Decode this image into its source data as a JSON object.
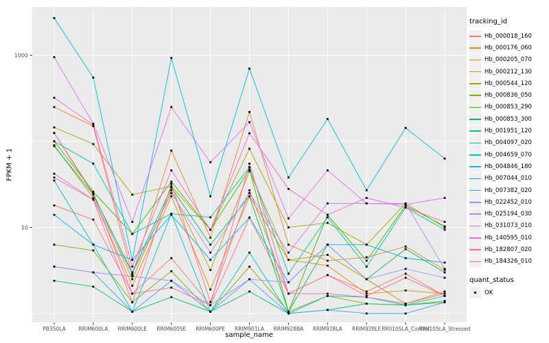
{
  "figure": {
    "panel_bg": "#EBEBEB",
    "grid_color": "#FFFFFF",
    "marker_color": "#000000",
    "tick_text_color": "#4D4D4D",
    "tick_mark_color": "#333333",
    "title_color": "#000000",
    "legend_key_bg": "#F0F0F0"
  },
  "chart_data": {
    "type": "line",
    "title": "",
    "xlabel": "sample_name",
    "ylabel": "FPKM + 1",
    "y_scale": "log10",
    "ylim": [
      0.79,
      3700
    ],
    "y_gridlines": [
      1,
      10,
      100,
      1000
    ],
    "y_ticks": [
      {
        "value": 10,
        "label": "10"
      },
      {
        "value": 1000,
        "label": "1000"
      }
    ],
    "grid": true,
    "legend_position": "right",
    "categories": [
      "PB350LA",
      "RRIM600LA",
      "RRIM600LE",
      "RRIM600SE",
      "RRIM600PE",
      "RRIM901LA",
      "RRIM928BA",
      "RRIM928LA",
      "RRIM928LE",
      "RRII105LA_Control",
      "RRII105LA_Stressed"
    ],
    "legend": {
      "title": "tracking_id"
    },
    "legend2": {
      "title": "quant_status",
      "items": [
        {
          "label": "OK",
          "marker": "square"
        }
      ]
    },
    "series": [
      {
        "name": "Hb_000018_160",
        "color": "#F8766D",
        "values": [
          18,
          12.3,
          1.7,
          4.4,
          1.25,
          13,
          1.7,
          2.8,
          1.8,
          2.9,
          1.6
        ]
      },
      {
        "name": "Hb_000176_060",
        "color": "#EA8331",
        "values": [
          250,
          150,
          2.8,
          78,
          7.6,
          219,
          6.3,
          4.1,
          4.5,
          6.0,
          3.2
        ]
      },
      {
        "name": "Hb_000205_070",
        "color": "#D89000",
        "values": [
          90,
          22,
          2.1,
          23,
          1.9,
          23,
          4.2,
          3.6,
          1.7,
          1.85,
          1.7
        ]
      },
      {
        "name": "Hb_000212_130",
        "color": "#C09B00",
        "values": [
          125,
          25,
          2.5,
          27,
          3.2,
          45,
          4.2,
          4.8,
          2.5,
          1.3,
          1.8
        ]
      },
      {
        "name": "Hb_000544_120",
        "color": "#A3A500",
        "values": [
          145,
          93,
          24,
          30,
          9.4,
          82,
          10,
          11.3,
          6.3,
          19,
          10
        ]
      },
      {
        "name": "Hb_000836_050",
        "color": "#7CAE00",
        "values": [
          6.3,
          5.4,
          1.35,
          3.1,
          1.05,
          3.5,
          1.05,
          1.6,
          1.3,
          1.25,
          1.4
        ]
      },
      {
        "name": "Hb_000853_290",
        "color": "#39B600",
        "values": [
          100,
          26,
          8.4,
          34,
          9.4,
          47,
          1.05,
          14,
          4.1,
          18,
          10.3
        ]
      },
      {
        "name": "Hb_000853_300",
        "color": "#00BB4E",
        "values": [
          88,
          24,
          3.0,
          29,
          6.3,
          23,
          1.05,
          6.3,
          2.5,
          5.6,
          3.0
        ]
      },
      {
        "name": "Hb_001951_120",
        "color": "#00BF7D",
        "values": [
          2.4,
          2.05,
          1.05,
          1.55,
          1.05,
          1.8,
          1.0,
          1.1,
          1.3,
          1.25,
          1.35
        ]
      },
      {
        "name": "Hb_004097_020",
        "color": "#00C1A3",
        "values": [
          100,
          55,
          8.4,
          14.4,
          13.1,
          50,
          2.9,
          13.1,
          3.5,
          17,
          9.4
        ]
      },
      {
        "name": "Hb_004659_070",
        "color": "#00BFC4",
        "values": [
          35,
          6.3,
          1.05,
          14.4,
          1.05,
          5.1,
          1.0,
          1.6,
          1.55,
          1.25,
          1.6
        ]
      },
      {
        "name": "Hb_004846_180",
        "color": "#00BAE0",
        "values": [
          2700,
          550,
          4.2,
          930,
          23,
          700,
          38,
          182,
          27,
          143,
          63
        ]
      },
      {
        "name": "Hb_007044_010",
        "color": "#00B0F6",
        "values": [
          14,
          6.3,
          4.2,
          14,
          4.2,
          13,
          2.3,
          6.3,
          6.3,
          4.4,
          3.9
        ]
      },
      {
        "name": "Hb_007382_020",
        "color": "#35A2FF",
        "values": [
          3.5,
          3.0,
          1.05,
          2.4,
          1.05,
          2.5,
          1.0,
          1.1,
          1.0,
          1.0,
          1.35
        ]
      },
      {
        "name": "Hb_022452_010",
        "color": "#9590FF",
        "values": [
          3.5,
          3.0,
          2.7,
          2.4,
          1.25,
          2.5,
          2.3,
          6.3,
          2.5,
          3.3,
          2.6
        ]
      },
      {
        "name": "Hb_025194_030",
        "color": "#BF80FF",
        "values": [
          42,
          21,
          2.9,
          25,
          5.1,
          25,
          5.1,
          19,
          19,
          19,
          3.3
        ]
      },
      {
        "name": "Hb_031073_010",
        "color": "#E76BF3",
        "values": [
          950,
          160,
          11.6,
          250,
          57,
          167,
          12.7,
          46,
          19,
          18.5,
          22
        ]
      },
      {
        "name": "Hb_140595_010",
        "color": "#FD61D1",
        "values": [
          320,
          155,
          3.5,
          46,
          9.4,
          124,
          28,
          14,
          22,
          17,
          11.6
        ]
      },
      {
        "name": "Hb_182807_020",
        "color": "#FF67A4",
        "values": [
          125,
          24,
          1.7,
          2.0,
          1.25,
          55,
          1.7,
          1.7,
          1.55,
          1.3,
          1.7
        ]
      },
      {
        "name": "Hb_184326_010",
        "color": "#FF6C92",
        "values": [
          38,
          21,
          1.35,
          32,
          1.36,
          27,
          1.7,
          2.8,
          1.6,
          2.6,
          1.6
        ]
      }
    ]
  }
}
